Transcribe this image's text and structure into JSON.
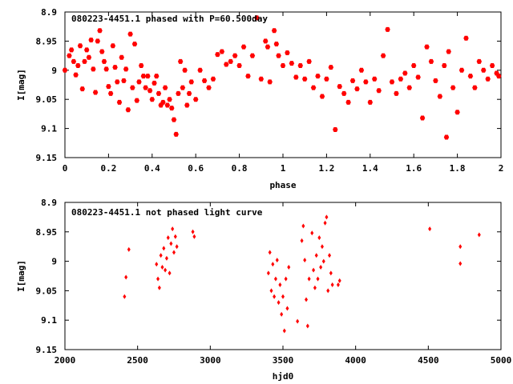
{
  "chart_data": [
    {
      "type": "scatter",
      "title": "080223-4451.1 phased with P=60.500day",
      "xlabel": "phase",
      "ylabel": "I[mag]",
      "xlim": [
        0,
        2
      ],
      "ylim": [
        8.9,
        9.15
      ],
      "y_inverted": true,
      "x_ticks": [
        "0",
        "0.2",
        "0.4",
        "0.6",
        "0.8",
        "1",
        "1.2",
        "1.4",
        "1.6",
        "1.8",
        "2"
      ],
      "y_ticks": [
        "8.9",
        "8.95",
        "9",
        "9.05",
        "9.1",
        "9.15"
      ],
      "grid": false,
      "marker": "filled-hexagon",
      "color": "#ff0000",
      "points": [
        [
          0.0,
          9.0
        ],
        [
          0.02,
          8.975
        ],
        [
          0.03,
          8.965
        ],
        [
          0.04,
          8.985
        ],
        [
          0.05,
          9.008
        ],
        [
          0.06,
          8.992
        ],
        [
          0.07,
          8.958
        ],
        [
          0.08,
          9.032
        ],
        [
          0.09,
          8.985
        ],
        [
          0.1,
          8.965
        ],
        [
          0.11,
          8.978
        ],
        [
          0.12,
          8.948
        ],
        [
          0.13,
          8.998
        ],
        [
          0.14,
          9.038
        ],
        [
          0.15,
          8.95
        ],
        [
          0.16,
          8.932
        ],
        [
          0.17,
          8.968
        ],
        [
          0.18,
          8.985
        ],
        [
          0.19,
          8.998
        ],
        [
          0.2,
          9.028
        ],
        [
          0.21,
          9.04
        ],
        [
          0.22,
          8.958
        ],
        [
          0.23,
          8.995
        ],
        [
          0.24,
          9.02
        ],
        [
          0.25,
          9.055
        ],
        [
          0.26,
          8.978
        ],
        [
          0.27,
          9.018
        ],
        [
          0.28,
          8.998
        ],
        [
          0.29,
          9.068
        ],
        [
          0.3,
          8.938
        ],
        [
          0.31,
          9.03
        ],
        [
          0.32,
          8.955
        ],
        [
          0.33,
          9.052
        ],
        [
          0.34,
          9.02
        ],
        [
          0.35,
          8.992
        ],
        [
          0.36,
          9.01
        ],
        [
          0.37,
          9.03
        ],
        [
          0.38,
          9.01
        ],
        [
          0.39,
          9.035
        ],
        [
          0.4,
          9.05
        ],
        [
          0.41,
          9.022
        ],
        [
          0.42,
          9.01
        ],
        [
          0.43,
          9.04
        ],
        [
          0.44,
          9.06
        ],
        [
          0.45,
          9.055
        ],
        [
          0.46,
          9.03
        ],
        [
          0.47,
          9.06
        ],
        [
          0.48,
          9.05
        ],
        [
          0.49,
          9.065
        ],
        [
          0.5,
          9.085
        ],
        [
          0.51,
          9.11
        ],
        [
          0.52,
          9.04
        ],
        [
          0.53,
          8.985
        ],
        [
          0.54,
          9.03
        ],
        [
          0.55,
          9.0
        ],
        [
          0.56,
          9.06
        ],
        [
          0.57,
          9.04
        ],
        [
          0.58,
          9.02
        ],
        [
          0.6,
          9.05
        ],
        [
          0.62,
          9.0
        ],
        [
          0.64,
          9.018
        ],
        [
          0.66,
          9.03
        ],
        [
          0.68,
          9.015
        ],
        [
          0.7,
          8.973
        ],
        [
          0.72,
          8.968
        ],
        [
          0.74,
          8.99
        ],
        [
          0.76,
          8.985
        ],
        [
          0.78,
          8.975
        ],
        [
          0.8,
          8.992
        ],
        [
          0.82,
          8.96
        ],
        [
          0.84,
          9.01
        ],
        [
          0.86,
          8.975
        ],
        [
          0.88,
          8.91
        ],
        [
          0.9,
          9.015
        ],
        [
          0.92,
          8.95
        ],
        [
          0.93,
          8.96
        ],
        [
          0.94,
          9.02
        ],
        [
          0.96,
          8.932
        ],
        [
          0.97,
          8.955
        ],
        [
          0.98,
          8.975
        ],
        [
          1.0,
          8.992
        ],
        [
          1.02,
          8.97
        ],
        [
          1.04,
          8.988
        ],
        [
          1.06,
          9.012
        ],
        [
          1.08,
          8.992
        ],
        [
          1.1,
          9.015
        ],
        [
          1.12,
          8.985
        ],
        [
          1.14,
          9.03
        ],
        [
          1.16,
          9.01
        ],
        [
          1.18,
          9.045
        ],
        [
          1.2,
          9.015
        ],
        [
          1.22,
          8.995
        ],
        [
          1.24,
          9.102
        ],
        [
          1.26,
          9.028
        ],
        [
          1.28,
          9.04
        ],
        [
          1.3,
          9.055
        ],
        [
          1.32,
          9.018
        ],
        [
          1.34,
          9.032
        ],
        [
          1.36,
          9.0
        ],
        [
          1.38,
          9.02
        ],
        [
          1.4,
          9.055
        ],
        [
          1.42,
          9.015
        ],
        [
          1.44,
          9.035
        ],
        [
          1.46,
          8.975
        ],
        [
          1.48,
          8.93
        ],
        [
          1.5,
          9.02
        ],
        [
          1.52,
          9.04
        ],
        [
          1.54,
          9.015
        ],
        [
          1.56,
          9.005
        ],
        [
          1.58,
          9.03
        ],
        [
          1.6,
          8.992
        ],
        [
          1.62,
          9.012
        ],
        [
          1.64,
          9.082
        ],
        [
          1.66,
          8.96
        ],
        [
          1.68,
          8.985
        ],
        [
          1.7,
          9.018
        ],
        [
          1.72,
          9.045
        ],
        [
          1.74,
          8.992
        ],
        [
          1.75,
          9.115
        ],
        [
          1.76,
          8.968
        ],
        [
          1.78,
          9.03
        ],
        [
          1.8,
          9.072
        ],
        [
          1.82,
          9.0
        ],
        [
          1.84,
          8.945
        ],
        [
          1.86,
          9.01
        ],
        [
          1.88,
          9.03
        ],
        [
          1.9,
          8.985
        ],
        [
          1.92,
          9.0
        ],
        [
          1.94,
          9.015
        ],
        [
          1.96,
          8.992
        ],
        [
          1.98,
          9.005
        ],
        [
          1.99,
          9.01
        ]
      ]
    },
    {
      "type": "scatter",
      "title": "080223-4451.1 not phased light curve",
      "xlabel": "hjd0",
      "ylabel": "I[mag]",
      "xlim": [
        2000,
        5000
      ],
      "ylim": [
        8.9,
        9.15
      ],
      "y_inverted": true,
      "x_ticks": [
        "2000",
        "2500",
        "3000",
        "3500",
        "4000",
        "4500",
        "5000"
      ],
      "y_ticks": [
        "8.9",
        "8.95",
        "9",
        "9.05",
        "9.1",
        "9.15"
      ],
      "grid": false,
      "marker": "filled-diamond",
      "color": "#ff0000",
      "points": [
        [
          2410,
          9.06
        ],
        [
          2420,
          9.027
        ],
        [
          2440,
          8.98
        ],
        [
          2630,
          9.005
        ],
        [
          2640,
          9.03
        ],
        [
          2650,
          9.045
        ],
        [
          2660,
          8.99
        ],
        [
          2670,
          9.01
        ],
        [
          2680,
          8.978
        ],
        [
          2690,
          9.015
        ],
        [
          2700,
          8.995
        ],
        [
          2710,
          8.96
        ],
        [
          2720,
          9.02
        ],
        [
          2730,
          8.97
        ],
        [
          2740,
          8.945
        ],
        [
          2750,
          8.985
        ],
        [
          2760,
          8.958
        ],
        [
          2770,
          8.975
        ],
        [
          2880,
          8.95
        ],
        [
          2890,
          8.958
        ],
        [
          3400,
          9.02
        ],
        [
          3410,
          8.985
        ],
        [
          3420,
          9.05
        ],
        [
          3430,
          9.005
        ],
        [
          3440,
          9.06
        ],
        [
          3450,
          9.03
        ],
        [
          3460,
          8.998
        ],
        [
          3470,
          9.07
        ],
        [
          3480,
          9.04
        ],
        [
          3490,
          9.09
        ],
        [
          3500,
          9.06
        ],
        [
          3510,
          9.118
        ],
        [
          3520,
          9.03
        ],
        [
          3530,
          9.08
        ],
        [
          3540,
          9.01
        ],
        [
          3600,
          9.102
        ],
        [
          3630,
          8.965
        ],
        [
          3640,
          8.94
        ],
        [
          3650,
          8.998
        ],
        [
          3660,
          9.065
        ],
        [
          3670,
          9.11
        ],
        [
          3680,
          9.03
        ],
        [
          3700,
          8.952
        ],
        [
          3710,
          9.015
        ],
        [
          3720,
          9.045
        ],
        [
          3730,
          8.99
        ],
        [
          3740,
          9.03
        ],
        [
          3750,
          8.96
        ],
        [
          3760,
          9.01
        ],
        [
          3770,
          8.975
        ],
        [
          3780,
          9.0
        ],
        [
          3790,
          8.935
        ],
        [
          3800,
          8.925
        ],
        [
          3810,
          9.05
        ],
        [
          3820,
          8.99
        ],
        [
          3830,
          9.02
        ],
        [
          3840,
          9.04
        ],
        [
          3880,
          9.04
        ],
        [
          3890,
          9.033
        ],
        [
          4510,
          8.945
        ],
        [
          4720,
          8.975
        ],
        [
          4720,
          9.004
        ],
        [
          4850,
          8.955
        ]
      ]
    }
  ]
}
